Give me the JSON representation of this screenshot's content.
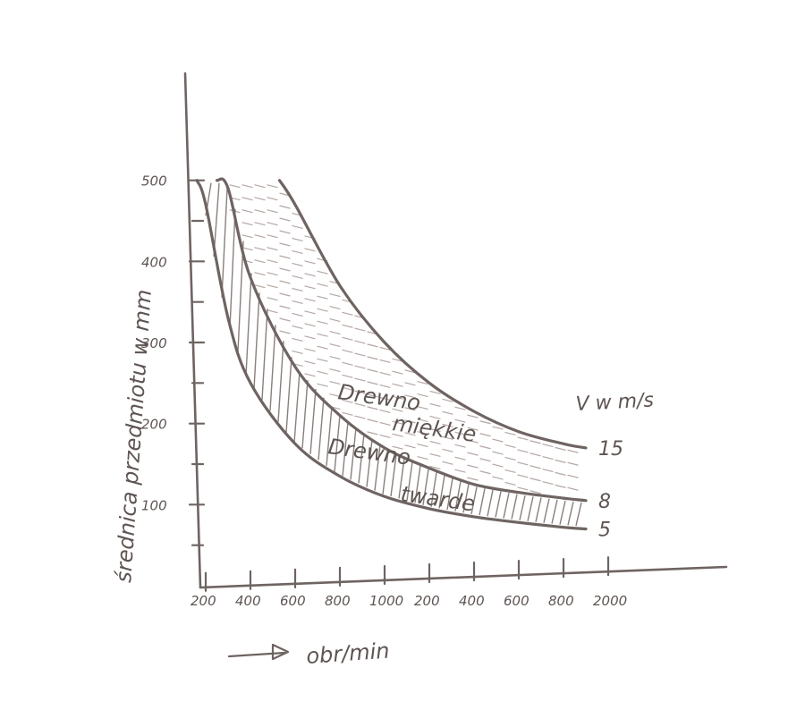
{
  "chart_data": {
    "type": "area",
    "title": "",
    "xlabel": "obr/min",
    "ylabel": "średnica przedmiotu w mm",
    "x_ticks": [
      "200",
      "400",
      "600",
      "800",
      "1000",
      "200",
      "400",
      "600",
      "800",
      "2000"
    ],
    "x_tick_values": [
      200,
      400,
      600,
      800,
      1000,
      1200,
      1400,
      1600,
      1800,
      2000
    ],
    "y_ticks": [
      "100",
      "200",
      "300",
      "400",
      "500"
    ],
    "y_tick_values": [
      100,
      200,
      300,
      400,
      500
    ],
    "xlim": [
      0,
      2000
    ],
    "ylim": [
      0,
      600
    ],
    "speed_unit_label": "V w m/s",
    "series": [
      {
        "name": "5",
        "x": [
          160,
          200,
          300,
          400,
          600,
          800,
          1000,
          1200,
          1400,
          1600,
          1800,
          1900
        ],
        "y": [
          500,
          470,
          330,
          250,
          175,
          135,
          110,
          95,
          85,
          78,
          72,
          70
        ]
      },
      {
        "name": "8",
        "x": [
          250,
          300,
          400,
          600,
          800,
          1000,
          1200,
          1400,
          1600,
          1800,
          1900
        ],
        "y": [
          500,
          490,
          380,
          270,
          210,
          170,
          145,
          125,
          115,
          108,
          105
        ]
      },
      {
        "name": "15",
        "x": [
          530,
          600,
          800,
          1000,
          1200,
          1400,
          1600,
          1800,
          1900
        ],
        "y": [
          500,
          470,
          370,
          300,
          250,
          215,
          190,
          175,
          170
        ]
      }
    ],
    "regions": [
      {
        "label_line1": "Drewno",
        "label_line2": "miękkie",
        "between": [
          "8",
          "15"
        ],
        "hatch": "horizontal"
      },
      {
        "label_line1": "Drewno",
        "label_line2": "twarde",
        "between": [
          "5",
          "8"
        ],
        "hatch": "vertical"
      }
    ],
    "grid": false,
    "legend": "none",
    "colors": {
      "ink": "#6e6461",
      "soft_hatch": "#b4a7a3",
      "hard_hatch": "#8a7f7b"
    }
  }
}
